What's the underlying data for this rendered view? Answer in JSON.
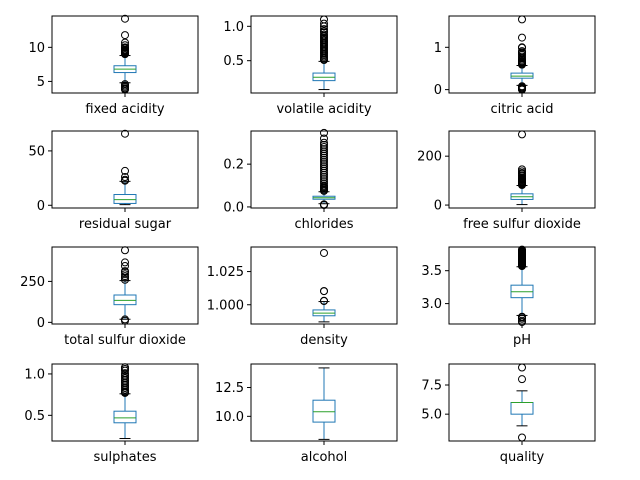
{
  "chart_data": [
    {
      "type": "box",
      "xlabel": "fixed acidity",
      "ylim": [
        3.3,
        14.6
      ],
      "yticks": [
        {
          "value": 5,
          "label": "5"
        },
        {
          "value": 10,
          "label": "10"
        }
      ],
      "whisker_low": 4.8,
      "q1": 6.3,
      "median": 6.8,
      "q3": 7.3,
      "whisker_high": 8.8,
      "fliers": [
        14.2,
        11.8,
        10.7,
        10.3,
        10.0,
        9.9,
        9.7,
        9.6,
        9.5,
        9.4,
        9.3,
        9.2,
        9.1,
        9.0,
        4.6,
        4.4,
        4.2,
        4.0,
        3.9,
        3.8
      ]
    },
    {
      "type": "box",
      "xlabel": "volatile acidity",
      "ylim": [
        0.03,
        1.15
      ],
      "yticks": [
        {
          "value": 0.5,
          "label": "0.5"
        },
        {
          "value": 1.0,
          "label": "1.0"
        }
      ],
      "whisker_low": 0.08,
      "q1": 0.21,
      "median": 0.26,
      "q3": 0.32,
      "whisker_high": 0.49,
      "fliers": [
        1.1,
        1.04,
        1.0,
        0.96,
        0.93,
        0.91,
        0.88,
        0.86,
        0.84,
        0.82,
        0.8,
        0.78,
        0.76,
        0.74,
        0.72,
        0.7,
        0.68,
        0.66,
        0.64,
        0.62,
        0.6,
        0.58,
        0.56,
        0.54,
        0.52,
        0.51
      ]
    },
    {
      "type": "box",
      "xlabel": "citric acid",
      "ylim": [
        -0.08,
        1.74
      ],
      "yticks": [
        {
          "value": 0,
          "label": "0"
        },
        {
          "value": 1,
          "label": "1"
        }
      ],
      "whisker_low": 0.1,
      "q1": 0.27,
      "median": 0.32,
      "q3": 0.39,
      "whisker_high": 0.57,
      "fliers": [
        1.66,
        1.23,
        1.0,
        0.99,
        0.91,
        0.88,
        0.86,
        0.82,
        0.78,
        0.74,
        0.71,
        0.68,
        0.66,
        0.64,
        0.62,
        0.6,
        0.59,
        0.08,
        0.06,
        0.04,
        0.02,
        0.01,
        0.0
      ]
    },
    {
      "type": "box",
      "xlabel": "residual sugar",
      "ylim": [
        -2.5,
        68.3
      ],
      "yticks": [
        {
          "value": 0,
          "label": "0"
        },
        {
          "value": 50,
          "label": "50"
        }
      ],
      "whisker_low": 0.6,
      "q1": 1.7,
      "median": 5.2,
      "q3": 9.9,
      "whisker_high": 22.0,
      "fliers": [
        65.8,
        31.6,
        26.0,
        23.5,
        22.6
      ]
    },
    {
      "type": "box",
      "xlabel": "chlorides",
      "ylim": [
        -0.005,
        0.355
      ],
      "yticks": [
        {
          "value": 0.0,
          "label": "0.0"
        },
        {
          "value": 0.2,
          "label": "0.2"
        }
      ],
      "whisker_low": 0.015,
      "q1": 0.036,
      "median": 0.043,
      "q3": 0.05,
      "whisker_high": 0.071,
      "fliers": [
        0.346,
        0.32,
        0.3,
        0.29,
        0.28,
        0.27,
        0.26,
        0.25,
        0.24,
        0.23,
        0.22,
        0.21,
        0.2,
        0.19,
        0.18,
        0.17,
        0.16,
        0.15,
        0.14,
        0.13,
        0.12,
        0.11,
        0.1,
        0.095,
        0.09,
        0.085,
        0.08,
        0.075,
        0.012,
        0.01,
        0.009
      ]
    },
    {
      "type": "box",
      "xlabel": "free sulfur dioxide",
      "ylim": [
        -12,
        303
      ],
      "yticks": [
        {
          "value": 0,
          "label": "0"
        },
        {
          "value": 200,
          "label": "200"
        }
      ],
      "whisker_low": 2,
      "q1": 23,
      "median": 34,
      "q3": 46,
      "whisker_high": 80,
      "fliers": [
        289,
        146,
        138,
        131,
        128,
        122,
        118,
        112,
        108,
        105,
        102,
        98,
        95,
        92,
        89,
        86,
        84,
        82
      ]
    },
    {
      "type": "box",
      "xlabel": "total sulfur dioxide",
      "ylim": [
        -10,
        460
      ],
      "yticks": [
        {
          "value": 0,
          "label": "0"
        },
        {
          "value": 250,
          "label": "250"
        }
      ],
      "whisker_low": 19,
      "q1": 108,
      "median": 134,
      "q3": 167,
      "whisker_high": 255,
      "fliers": [
        440,
        366,
        344,
        313,
        307,
        294,
        282,
        272,
        260,
        18,
        10
      ]
    },
    {
      "type": "box",
      "xlabel": "density",
      "ylim": [
        0.9855,
        1.0435
      ],
      "yticks": [
        {
          "value": 1.0,
          "label": "1.000"
        },
        {
          "value": 1.025,
          "label": "1.025"
        }
      ],
      "whisker_low": 0.9871,
      "q1": 0.9917,
      "median": 0.9937,
      "q3": 0.9961,
      "whisker_high": 1.0024,
      "fliers": [
        1.039,
        1.0103,
        1.0103,
        1.003,
        1.0028
      ]
    },
    {
      "type": "box",
      "xlabel": "pH",
      "ylim": [
        2.69,
        3.86
      ],
      "yticks": [
        {
          "value": 3.0,
          "label": "3.0"
        },
        {
          "value": 3.5,
          "label": "3.5"
        }
      ],
      "whisker_low": 2.82,
      "q1": 3.09,
      "median": 3.18,
      "q3": 3.28,
      "whisker_high": 3.56,
      "fliers": [
        3.82,
        3.81,
        3.8,
        3.79,
        3.78,
        3.77,
        3.76,
        3.75,
        3.74,
        3.73,
        3.72,
        3.71,
        3.7,
        3.69,
        3.68,
        3.67,
        3.66,
        3.65,
        3.64,
        3.63,
        3.62,
        3.61,
        3.6,
        3.59,
        3.58,
        3.57,
        2.8,
        2.79,
        2.77,
        2.74,
        2.72
      ]
    },
    {
      "type": "box",
      "xlabel": "sulphates",
      "ylim": [
        0.19,
        1.12
      ],
      "yticks": [
        {
          "value": 0.5,
          "label": "0.5"
        },
        {
          "value": 1.0,
          "label": "1.0"
        }
      ],
      "whisker_low": 0.22,
      "q1": 0.41,
      "median": 0.47,
      "q3": 0.55,
      "whisker_high": 0.76,
      "fliers": [
        1.08,
        1.06,
        1.04,
        1.01,
        0.99,
        0.97,
        0.95,
        0.93,
        0.91,
        0.89,
        0.87,
        0.85,
        0.83,
        0.81,
        0.79,
        0.78,
        0.77
      ]
    },
    {
      "type": "box",
      "xlabel": "alcohol",
      "ylim": [
        7.86,
        14.54
      ],
      "yticks": [
        {
          "value": 10.0,
          "label": "10.0"
        },
        {
          "value": 12.5,
          "label": "12.5"
        }
      ],
      "whisker_low": 8.0,
      "q1": 9.5,
      "median": 10.4,
      "q3": 11.4,
      "whisker_high": 14.2,
      "fliers": []
    },
    {
      "type": "box",
      "xlabel": "quality",
      "ylim": [
        2.7,
        9.3
      ],
      "yticks": [
        {
          "value": 5.0,
          "label": "5.0"
        },
        {
          "value": 7.5,
          "label": "7.5"
        }
      ],
      "whisker_low": 4,
      "q1": 5,
      "median": 6,
      "q3": 6,
      "whisker_high": 7,
      "fliers": [
        9,
        8,
        3
      ]
    }
  ],
  "colors": {
    "box": "#1f77b4",
    "median": "#2ca02c",
    "flier": "#000000",
    "axes": "#000000",
    "background": "#ffffff"
  }
}
